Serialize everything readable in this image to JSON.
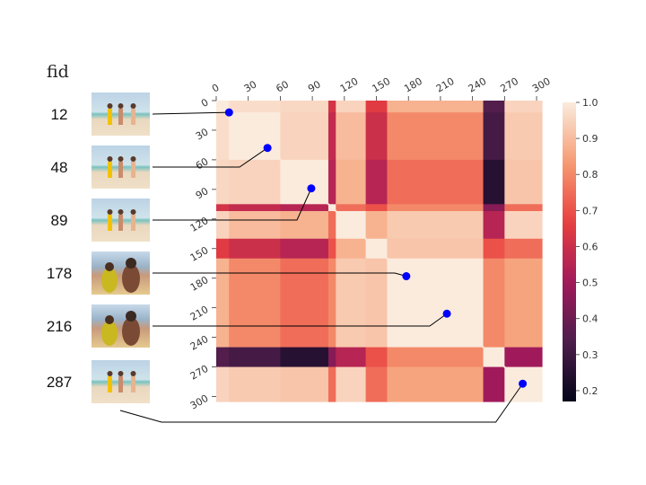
{
  "chart_data": {
    "type": "heatmap",
    "title": "",
    "row_header": "fid",
    "xlim": [
      0,
      305
    ],
    "ylim": [
      0,
      305
    ],
    "x_ticks": [
      0,
      30,
      60,
      90,
      120,
      150,
      180,
      210,
      240,
      270,
      300
    ],
    "y_ticks": [
      0,
      30,
      60,
      90,
      120,
      150,
      180,
      210,
      240,
      270,
      300
    ],
    "colorbar": {
      "range": [
        0.17,
        1.0
      ],
      "ticks": [
        0.2,
        0.3,
        0.4,
        0.5,
        0.6,
        0.7,
        0.8,
        0.9,
        1.0
      ],
      "tick_labels": [
        "0.2",
        "0.3",
        "0.4",
        "0.5",
        "0.6",
        "0.7",
        "0.8",
        "0.9",
        "1.0"
      ],
      "colormap": [
        "#03051a",
        "#4c1d4b",
        "#a11a5b",
        "#e83f3f",
        "#f69c73",
        "#faebdd"
      ]
    },
    "segments": [
      {
        "start": 0,
        "end": 12
      },
      {
        "start": 12,
        "end": 60
      },
      {
        "start": 60,
        "end": 105
      },
      {
        "start": 105,
        "end": 112
      },
      {
        "start": 112,
        "end": 140
      },
      {
        "start": 140,
        "end": 160
      },
      {
        "start": 160,
        "end": 250
      },
      {
        "start": 250,
        "end": 270
      },
      {
        "start": 270,
        "end": 305
      }
    ],
    "segment_similarity": [
      [
        1.0,
        0.97,
        0.96,
        0.62,
        0.95,
        0.65,
        0.88,
        0.35,
        0.95
      ],
      [
        0.97,
        1.0,
        0.95,
        0.58,
        0.9,
        0.6,
        0.8,
        0.32,
        0.93
      ],
      [
        0.96,
        0.95,
        1.0,
        0.55,
        0.88,
        0.55,
        0.75,
        0.25,
        0.92
      ],
      [
        0.62,
        0.58,
        0.55,
        1.0,
        0.75,
        0.7,
        0.8,
        0.45,
        0.75
      ],
      [
        0.95,
        0.9,
        0.88,
        0.75,
        1.0,
        0.88,
        0.93,
        0.55,
        0.95
      ],
      [
        0.65,
        0.6,
        0.55,
        0.7,
        0.88,
        1.0,
        0.92,
        0.7,
        0.75
      ],
      [
        0.88,
        0.8,
        0.75,
        0.8,
        0.93,
        0.92,
        1.0,
        0.8,
        0.85
      ],
      [
        0.35,
        0.32,
        0.25,
        0.45,
        0.55,
        0.7,
        0.8,
        1.0,
        0.5
      ],
      [
        0.95,
        0.93,
        0.92,
        0.75,
        0.95,
        0.75,
        0.85,
        0.5,
        1.0
      ]
    ],
    "frames": [
      {
        "fid": "12",
        "frame": 12,
        "thumbnail": "beach-group-scene"
      },
      {
        "fid": "48",
        "frame": 48,
        "thumbnail": "beach-shore-scene"
      },
      {
        "fid": "89",
        "frame": 89,
        "thumbnail": "beach-people-scene"
      },
      {
        "fid": "178",
        "frame": 178,
        "thumbnail": "closeup-people-scene"
      },
      {
        "fid": "216",
        "frame": 216,
        "thumbnail": "closeup-people-scene"
      },
      {
        "fid": "287",
        "frame": 287,
        "thumbnail": "beach-back-view-scene"
      }
    ],
    "marker_color": "#0000ff"
  }
}
